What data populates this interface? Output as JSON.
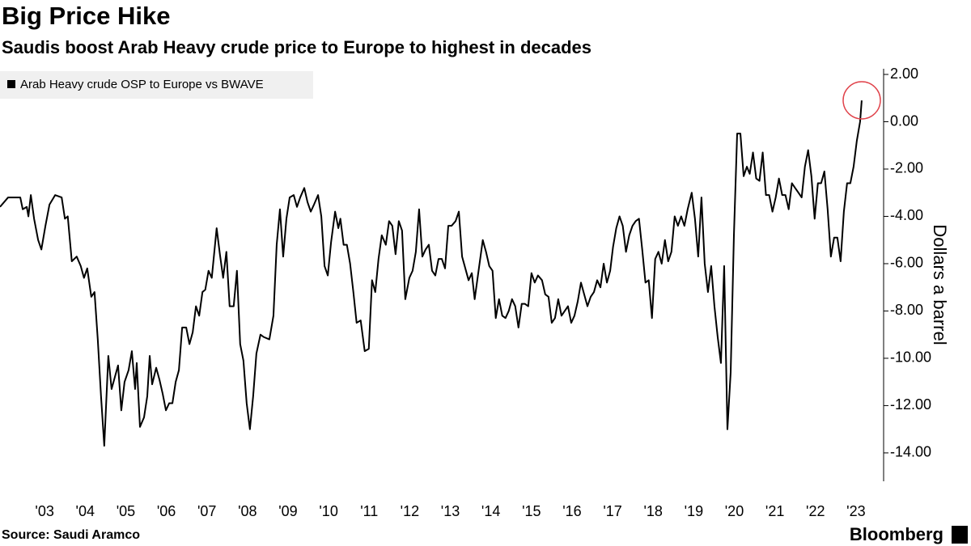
{
  "chart_data": {
    "type": "line",
    "title": "Big Price Hike",
    "subtitle": "Saudis boost Arab Heavy crude price to Europe to highest in decades",
    "y_label": "Dollars a barrel",
    "source": "Source:  Saudi Aramco",
    "brand": "Bloomberg",
    "xlim": [
      2002.4,
      2024.14
    ],
    "ylim": [
      -15.2,
      2.24
    ],
    "xticks": [
      {
        "value": 2003.5,
        "label": "'03"
      },
      {
        "value": 2004.5,
        "label": "'04"
      },
      {
        "value": 2005.5,
        "label": "'05"
      },
      {
        "value": 2006.5,
        "label": "'06"
      },
      {
        "value": 2007.5,
        "label": "'07"
      },
      {
        "value": 2008.5,
        "label": "'08"
      },
      {
        "value": 2009.5,
        "label": "'09"
      },
      {
        "value": 2010.5,
        "label": "'10"
      },
      {
        "value": 2011.5,
        "label": "'11"
      },
      {
        "value": 2012.5,
        "label": "'12"
      },
      {
        "value": 2013.5,
        "label": "'13"
      },
      {
        "value": 2014.5,
        "label": "'14"
      },
      {
        "value": 2015.5,
        "label": "'15"
      },
      {
        "value": 2016.5,
        "label": "'16"
      },
      {
        "value": 2017.5,
        "label": "'17"
      },
      {
        "value": 2018.5,
        "label": "'18"
      },
      {
        "value": 2019.5,
        "label": "'19"
      },
      {
        "value": 2020.5,
        "label": "'20"
      },
      {
        "value": 2021.5,
        "label": "'21"
      },
      {
        "value": 2022.5,
        "label": "'22"
      },
      {
        "value": 2023.5,
        "label": "'23"
      }
    ],
    "yticks": [
      {
        "value": 2,
        "label": "2.00"
      },
      {
        "value": 0,
        "label": "0.00"
      },
      {
        "value": -2,
        "label": "-2.00"
      },
      {
        "value": -4,
        "label": "-4.00"
      },
      {
        "value": -6,
        "label": "-6.00"
      },
      {
        "value": -8,
        "label": "-8.00"
      },
      {
        "value": -10,
        "label": "-10.00"
      },
      {
        "value": -12,
        "label": "-12.00"
      },
      {
        "value": -14,
        "label": "-14.00"
      }
    ],
    "x": [
      2002.4,
      2002.6,
      2002.8,
      2002.9,
      2002.96,
      2003.06,
      2003.1,
      2003.16,
      2003.24,
      2003.34,
      2003.42,
      2003.52,
      2003.62,
      2003.76,
      2003.92,
      2004.0,
      2004.07,
      2004.17,
      2004.29,
      2004.39,
      2004.47,
      2004.55,
      2004.65,
      2004.73,
      2004.81,
      2004.89,
      2004.97,
      2005.07,
      2005.15,
      2005.23,
      2005.31,
      2005.39,
      2005.47,
      2005.57,
      2005.65,
      2005.73,
      2005.77,
      2005.85,
      2005.95,
      2006.03,
      2006.09,
      2006.15,
      2006.25,
      2006.33,
      2006.41,
      2006.49,
      2006.57,
      2006.65,
      2006.73,
      2006.81,
      2006.89,
      2006.99,
      2007.07,
      2007.15,
      2007.23,
      2007.31,
      2007.39,
      2007.46,
      2007.54,
      2007.62,
      2007.74,
      2007.82,
      2007.9,
      2007.98,
      2008.06,
      2008.16,
      2008.24,
      2008.32,
      2008.4,
      2008.48,
      2008.56,
      2008.64,
      2008.72,
      2008.82,
      2008.9,
      2009.04,
      2009.14,
      2009.22,
      2009.3,
      2009.38,
      2009.46,
      2009.54,
      2009.64,
      2009.72,
      2009.8,
      2009.9,
      2009.98,
      2010.06,
      2010.14,
      2010.24,
      2010.32,
      2010.4,
      2010.48,
      2010.56,
      2010.66,
      2010.74,
      2010.79,
      2010.87,
      2010.95,
      2011.03,
      2011.11,
      2011.19,
      2011.29,
      2011.39,
      2011.49,
      2011.57,
      2011.65,
      2011.73,
      2011.81,
      2011.91,
      2011.99,
      2012.07,
      2012.15,
      2012.23,
      2012.31,
      2012.39,
      2012.49,
      2012.57,
      2012.65,
      2012.73,
      2012.81,
      2012.89,
      2012.97,
      2013.05,
      2013.13,
      2013.21,
      2013.29,
      2013.37,
      2013.45,
      2013.53,
      2013.63,
      2013.71,
      2013.79,
      2013.87,
      2013.95,
      2014.03,
      2014.1,
      2014.18,
      2014.3,
      2014.38,
      2014.46,
      2014.54,
      2014.62,
      2014.7,
      2014.78,
      2014.86,
      2014.94,
      2015.02,
      2015.1,
      2015.18,
      2015.26,
      2015.34,
      2015.42,
      2015.5,
      2015.58,
      2015.66,
      2015.76,
      2015.84,
      2015.92,
      2016.0,
      2016.08,
      2016.16,
      2016.24,
      2016.32,
      2016.4,
      2016.48,
      2016.56,
      2016.64,
      2016.72,
      2016.8,
      2016.88,
      2016.96,
      2017.04,
      2017.12,
      2017.2,
      2017.28,
      2017.36,
      2017.44,
      2017.51,
      2017.59,
      2017.67,
      2017.75,
      2017.83,
      2017.91,
      2017.99,
      2018.07,
      2018.15,
      2018.23,
      2018.31,
      2018.39,
      2018.47,
      2018.55,
      2018.63,
      2018.71,
      2018.79,
      2018.87,
      2018.95,
      2019.03,
      2019.11,
      2019.19,
      2019.27,
      2019.35,
      2019.45,
      2019.53,
      2019.61,
      2019.69,
      2019.77,
      2019.85,
      2019.93,
      2020.01,
      2020.09,
      2020.17,
      2020.25,
      2020.33,
      2020.41,
      2020.49,
      2020.57,
      2020.65,
      2020.73,
      2020.81,
      2020.88,
      2020.96,
      2021.04,
      2021.12,
      2021.2,
      2021.28,
      2021.36,
      2021.44,
      2021.52,
      2021.6,
      2021.68,
      2021.76,
      2021.84,
      2021.92,
      2022.0,
      2022.08,
      2022.16,
      2022.24,
      2022.32,
      2022.4,
      2022.48,
      2022.56,
      2022.64,
      2022.72,
      2022.8,
      2022.88,
      2022.96,
      2023.04,
      2023.12,
      2023.2,
      2023.28,
      2023.36,
      2023.44,
      2023.52,
      2023.6,
      2023.64
    ],
    "series": [
      {
        "name": "Arab Heavy crude OSP to Europe vs BWAVE",
        "color": "#000000",
        "values": [
          -3.6,
          -3.2,
          -3.2,
          -3.2,
          -3.7,
          -3.6,
          -4.0,
          -3.1,
          -4.1,
          -5.0,
          -5.4,
          -4.4,
          -3.5,
          -3.1,
          -3.2,
          -4.1,
          -4.0,
          -5.9,
          -5.7,
          -6.1,
          -6.6,
          -6.2,
          -7.4,
          -7.2,
          -9.2,
          -11.6,
          -13.7,
          -9.9,
          -11.3,
          -10.8,
          -10.3,
          -12.2,
          -11.0,
          -10.5,
          -9.7,
          -11.3,
          -10.2,
          -12.9,
          -12.5,
          -11.6,
          -9.9,
          -11.1,
          -10.4,
          -10.9,
          -11.5,
          -12.2,
          -11.9,
          -11.9,
          -11.0,
          -10.5,
          -8.7,
          -8.7,
          -9.4,
          -8.9,
          -7.8,
          -8.2,
          -7.2,
          -7.1,
          -6.3,
          -6.6,
          -4.5,
          -5.6,
          -6.6,
          -5.5,
          -7.8,
          -7.8,
          -6.3,
          -9.4,
          -10.1,
          -11.9,
          -13.0,
          -11.6,
          -9.8,
          -9.0,
          -9.1,
          -9.2,
          -8.2,
          -5.2,
          -3.7,
          -5.7,
          -4.1,
          -3.2,
          -3.1,
          -3.6,
          -3.2,
          -2.8,
          -3.4,
          -3.8,
          -3.5,
          -3.1,
          -4.0,
          -6.1,
          -6.5,
          -5.1,
          -3.8,
          -4.5,
          -4.1,
          -5.2,
          -5.2,
          -6.0,
          -7.2,
          -8.5,
          -8.4,
          -9.7,
          -9.6,
          -6.7,
          -7.2,
          -5.8,
          -4.8,
          -5.2,
          -4.2,
          -4.4,
          -5.6,
          -4.2,
          -4.6,
          -7.5,
          -6.6,
          -6.3,
          -5.5,
          -3.7,
          -5.7,
          -5.4,
          -5.2,
          -6.3,
          -6.5,
          -5.8,
          -5.8,
          -6.2,
          -4.4,
          -4.4,
          -4.2,
          -3.8,
          -5.7,
          -6.2,
          -6.7,
          -6.4,
          -7.5,
          -6.5,
          -5.0,
          -5.5,
          -6.1,
          -6.3,
          -8.3,
          -7.5,
          -8.2,
          -8.3,
          -8.0,
          -7.5,
          -7.8,
          -8.7,
          -7.7,
          -7.7,
          -7.8,
          -6.4,
          -6.8,
          -6.5,
          -6.7,
          -7.3,
          -7.4,
          -8.5,
          -8.3,
          -7.5,
          -8.2,
          -8.0,
          -7.8,
          -8.5,
          -8.2,
          -7.6,
          -6.8,
          -7.3,
          -7.8,
          -7.4,
          -7.2,
          -6.7,
          -7.0,
          -6.0,
          -6.8,
          -6.3,
          -5.3,
          -4.5,
          -4.0,
          -4.4,
          -5.5,
          -4.8,
          -4.4,
          -4.2,
          -4.1,
          -5.4,
          -6.8,
          -6.7,
          -8.3,
          -5.8,
          -5.5,
          -6.0,
          -5.0,
          -5.9,
          -5.5,
          -4.0,
          -4.4,
          -4.0,
          -4.4,
          -3.7,
          -3.0,
          -4.1,
          -5.7,
          -3.2,
          -6.0,
          -7.2,
          -6.1,
          -7.8,
          -9.1,
          -10.2,
          -6.1,
          -13.0,
          -10.6,
          -4.8,
          -0.5,
          -0.5,
          -2.3,
          -1.9,
          -2.2,
          -1.3,
          -2.4,
          -2.5,
          -1.3,
          -3.1,
          -3.1,
          -3.8,
          -3.2,
          -2.4,
          -3.1,
          -3.1,
          -3.7,
          -2.6,
          -2.8,
          -3.0,
          -3.2,
          -1.9,
          -1.2,
          -2.3,
          -4.1,
          -2.6,
          -2.6,
          -2.1,
          -3.7,
          -5.7,
          -4.9,
          -4.9,
          -5.9,
          -3.8,
          -2.6,
          -2.6,
          -1.9,
          -0.8,
          0.0,
          0.9
        ]
      }
    ]
  }
}
